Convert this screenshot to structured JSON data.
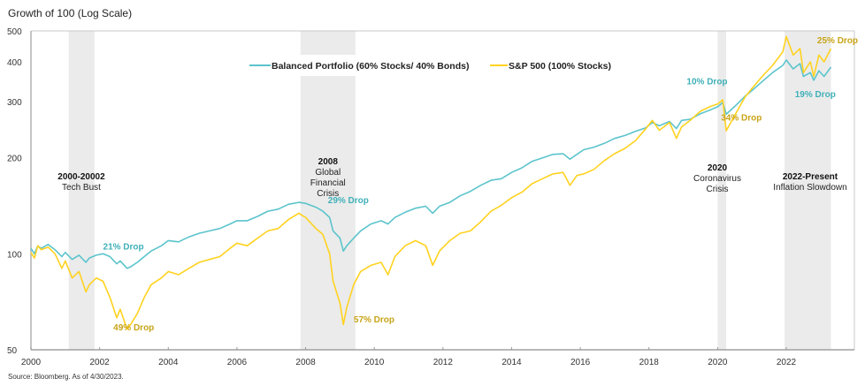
{
  "chart_data": {
    "type": "line",
    "title": "Growth of 100 (Log Scale)",
    "source": "Source: Bloomberg. As of 4/30/2023.",
    "xlabel": "",
    "ylabel": "",
    "yscale": "log",
    "ylim": [
      50,
      500
    ],
    "xlim": [
      2000,
      2024.1
    ],
    "yticks": [
      "50",
      "100",
      "200",
      "300",
      "400",
      "500"
    ],
    "ytick_values": [
      50,
      100,
      200,
      300,
      400,
      500
    ],
    "xticks": [
      "2000",
      "2002",
      "2004",
      "2006",
      "2008",
      "2010",
      "2012",
      "2014",
      "2016",
      "2018",
      "2020",
      "2022"
    ],
    "xtick_values": [
      2000,
      2002,
      2004,
      2006,
      2008,
      2010,
      2012,
      2014,
      2016,
      2018,
      2020,
      2022
    ],
    "legend_position": "top-center",
    "colors": {
      "balanced": "#5bc4cc",
      "sp500": "#ffd21f",
      "shade": "#ebebeb",
      "balanced_label": "#3fb0b8",
      "sp500_label": "#c9a417"
    },
    "series": [
      {
        "name": "Balanced Portfolio (60% Stocks/ 40% Bonds)",
        "key": "balanced",
        "x": [
          2000.0,
          2000.1,
          2000.2,
          2000.3,
          2000.5,
          2000.7,
          2000.9,
          2001.0,
          2001.2,
          2001.4,
          2001.6,
          2001.7,
          2001.9,
          2002.1,
          2002.3,
          2002.5,
          2002.6,
          2002.8,
          2002.9,
          2003.1,
          2003.3,
          2003.5,
          2003.8,
          2004.0,
          2004.3,
          2004.6,
          2004.9,
          2005.2,
          2005.5,
          2005.8,
          2006.0,
          2006.3,
          2006.6,
          2006.9,
          2007.2,
          2007.5,
          2007.8,
          2008.0,
          2008.3,
          2008.5,
          2008.7,
          2008.8,
          2009.0,
          2009.1,
          2009.2,
          2009.4,
          2009.6,
          2009.9,
          2010.2,
          2010.4,
          2010.6,
          2010.9,
          2011.2,
          2011.5,
          2011.7,
          2011.9,
          2012.2,
          2012.5,
          2012.8,
          2013.1,
          2013.4,
          2013.7,
          2014.0,
          2014.3,
          2014.6,
          2014.9,
          2015.2,
          2015.5,
          2015.7,
          2015.9,
          2016.1,
          2016.4,
          2016.7,
          2017.0,
          2017.3,
          2017.6,
          2017.9,
          2018.1,
          2018.3,
          2018.6,
          2018.8,
          2018.95,
          2019.2,
          2019.5,
          2019.8,
          2020.0,
          2020.15,
          2020.25,
          2020.5,
          2020.8,
          2021.0,
          2021.3,
          2021.6,
          2021.9,
          2022.0,
          2022.2,
          2022.4,
          2022.5,
          2022.7,
          2022.8,
          2022.95,
          2023.1,
          2023.3
        ],
        "values": [
          104,
          100,
          106,
          104,
          107,
          103,
          98,
          101,
          96,
          99,
          94,
          97,
          99,
          100,
          98,
          93,
          95,
          90,
          91,
          94,
          98,
          102,
          106,
          110,
          109,
          113,
          116,
          118,
          120,
          124,
          127,
          127,
          131,
          136,
          138,
          143,
          145,
          144,
          140,
          136,
          130,
          118,
          112,
          102,
          106,
          112,
          118,
          124,
          127,
          124,
          130,
          135,
          139,
          141,
          134,
          141,
          145,
          152,
          157,
          164,
          170,
          172,
          180,
          186,
          195,
          200,
          205,
          206,
          198,
          205,
          212,
          216,
          222,
          230,
          235,
          242,
          248,
          258,
          252,
          260,
          247,
          262,
          264,
          275,
          283,
          289,
          298,
          274,
          290,
          312,
          325,
          347,
          370,
          390,
          405,
          380,
          395,
          360,
          370,
          350,
          375,
          360,
          385
        ]
      },
      {
        "name": "S&P 500 (100% Stocks)",
        "key": "sp500",
        "x": [
          2000.0,
          2000.1,
          2000.2,
          2000.3,
          2000.5,
          2000.7,
          2000.9,
          2001.0,
          2001.2,
          2001.4,
          2001.6,
          2001.7,
          2001.9,
          2002.1,
          2002.3,
          2002.5,
          2002.6,
          2002.8,
          2002.9,
          2003.1,
          2003.3,
          2003.5,
          2003.8,
          2004.0,
          2004.3,
          2004.6,
          2004.9,
          2005.2,
          2005.5,
          2005.8,
          2006.0,
          2006.3,
          2006.6,
          2006.9,
          2007.2,
          2007.5,
          2007.8,
          2008.0,
          2008.3,
          2008.5,
          2008.7,
          2008.8,
          2009.0,
          2009.1,
          2009.2,
          2009.4,
          2009.6,
          2009.9,
          2010.2,
          2010.4,
          2010.6,
          2010.9,
          2011.2,
          2011.5,
          2011.7,
          2011.9,
          2012.2,
          2012.5,
          2012.8,
          2013.1,
          2013.4,
          2013.7,
          2014.0,
          2014.3,
          2014.6,
          2014.9,
          2015.2,
          2015.5,
          2015.7,
          2015.9,
          2016.1,
          2016.4,
          2016.7,
          2017.0,
          2017.3,
          2017.6,
          2017.9,
          2018.1,
          2018.3,
          2018.6,
          2018.8,
          2018.95,
          2019.2,
          2019.5,
          2019.8,
          2020.0,
          2020.15,
          2020.25,
          2020.5,
          2020.8,
          2021.0,
          2021.3,
          2021.6,
          2021.9,
          2022.0,
          2022.2,
          2022.4,
          2022.5,
          2022.7,
          2022.8,
          2022.95,
          2023.1,
          2023.3
        ],
        "values": [
          101,
          97,
          106,
          103,
          105,
          100,
          90,
          95,
          84,
          88,
          76,
          80,
          84,
          82,
          73,
          63,
          67,
          58,
          60,
          65,
          73,
          80,
          84,
          88,
          86,
          90,
          94,
          96,
          98,
          104,
          108,
          106,
          112,
          118,
          120,
          128,
          134,
          130,
          120,
          115,
          100,
          82,
          70,
          60,
          68,
          80,
          88,
          92,
          94,
          86,
          98,
          106,
          110,
          106,
          92,
          102,
          110,
          116,
          118,
          126,
          136,
          142,
          150,
          156,
          166,
          172,
          178,
          180,
          164,
          176,
          178,
          184,
          196,
          206,
          214,
          226,
          246,
          262,
          244,
          258,
          230,
          250,
          262,
          280,
          290,
          295,
          304,
          243,
          272,
          310,
          330,
          360,
          390,
          430,
          480,
          420,
          440,
          370,
          400,
          360,
          420,
          400,
          440
        ]
      }
    ],
    "shaded_periods": [
      {
        "start": 2001.1,
        "end": 2001.85,
        "title": "2000-20002",
        "subtitle": [
          "Tech Bust"
        ]
      },
      {
        "start": 2007.85,
        "end": 2009.45,
        "title": "2008",
        "subtitle": [
          "Global",
          "Financial",
          "Crisis"
        ]
      },
      {
        "start": 2020.0,
        "end": 2020.25,
        "title": "2020",
        "subtitle": [
          "Coronavirus",
          "Crisis"
        ]
      },
      {
        "start": 2021.95,
        "end": 2023.3,
        "title": "2022-Present",
        "subtitle": [
          "Inflation Slowdown"
        ]
      }
    ],
    "annotations": [
      {
        "text": "21% Drop",
        "series": "balanced",
        "x": 2002.1,
        "y": 103
      },
      {
        "text": "49% Drop",
        "series": "sp500",
        "x": 2002.4,
        "y": 57.5
      },
      {
        "text": "29% Drop",
        "series": "balanced",
        "x": 2008.65,
        "y": 144
      },
      {
        "text": "57% Drop",
        "series": "sp500",
        "x": 2009.4,
        "y": 61
      },
      {
        "text": "10% Drop",
        "series": "balanced",
        "x": 2019.1,
        "y": 340
      },
      {
        "text": "34% Drop",
        "series": "sp500",
        "x": 2020.1,
        "y": 262
      },
      {
        "text": "19% Drop",
        "series": "balanced",
        "x": 2022.25,
        "y": 310
      },
      {
        "text": "25% Drop",
        "series": "sp500",
        "x": 2022.9,
        "y": 458
      }
    ]
  }
}
